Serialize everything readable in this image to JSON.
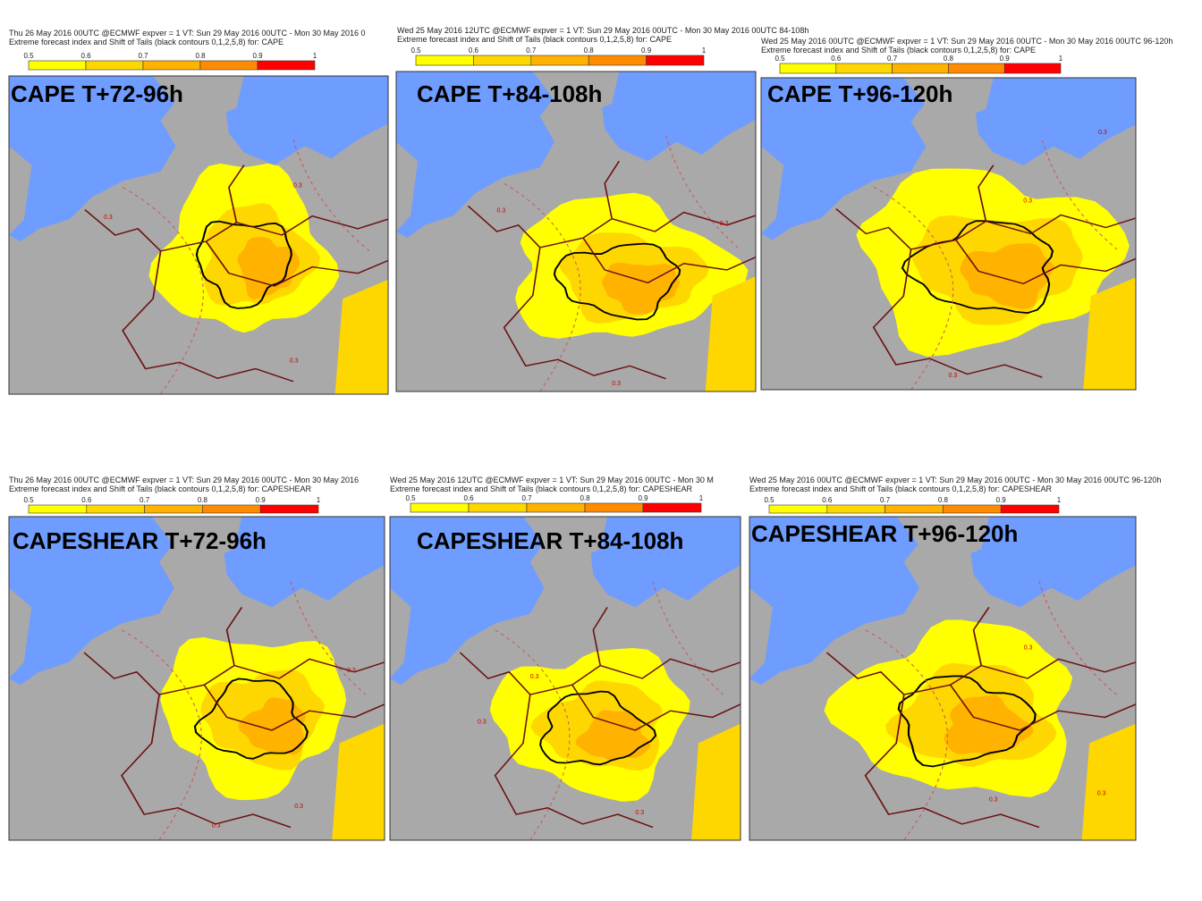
{
  "colorbar": {
    "ticks": [
      0.5,
      0.6,
      0.7,
      0.8,
      0.9,
      1
    ],
    "colors": [
      "#ffff00",
      "#ffd700",
      "#ffb300",
      "#ff8c00",
      "#ff0000"
    ]
  },
  "panels": [
    {
      "header_line1": "Thu 26 May 2016 00UTC @ECMWF expver = 1 VT: Sun 29 May 2016 00UTC - Mon 30 May 2016 0",
      "header_line2": "Extreme forecast index and Shift of Tails (black contours 0,1,2,5,8) for: CAPE",
      "title": "CAPE T+72-96h",
      "map_labels": [
        "0.3",
        "0.3",
        "0.3"
      ]
    },
    {
      "header_line1": "Wed 25 May 2016 12UTC @ECMWF expver = 1 VT: Sun 29 May 2016 00UTC - Mon 30 May 2016 00UTC  84-108h",
      "header_line2": "Extreme forecast index and Shift of Tails (black contours 0,1,2,5,8) for: CAPE",
      "title": "CAPE T+84-108h",
      "map_labels": [
        "0.3",
        "0.3",
        "0.3"
      ]
    },
    {
      "header_line1": "Wed 25 May 2016 00UTC @ECMWF expver = 1 VT: Sun 29 May 2016 00UTC - Mon 30 May 2016 00UTC  96-120h",
      "header_line2": "Extreme forecast index and Shift of Tails (black contours 0,1,2,5,8) for: CAPE",
      "title": "CAPE T+96-120h",
      "map_labels": [
        "0.3",
        "0.3",
        "0.3"
      ]
    },
    {
      "header_line1": "Thu 26 May 2016 00UTC @ECMWF expver = 1 VT: Sun 29 May 2016 00UTC - Mon 30 May 2016",
      "header_line2": "Extreme forecast index and Shift of Tails (black contours 0,1,2,5,8) for: CAPESHEAR",
      "title": "CAPESHEAR T+72-96h",
      "map_labels": [
        "0.3",
        "0.3",
        "0.3"
      ]
    },
    {
      "header_line1": "Wed 25 May 2016 12UTC @ECMWF expver = 1 VT: Sun 29 May 2016 00UTC - Mon 30 M",
      "header_line2": "Extreme forecast index and Shift of Tails (black contours 0,1,2,5,8) for: CAPESHEAR",
      "title": "CAPESHEAR T+84-108h",
      "map_labels": [
        "0.3",
        "0.3",
        "0.3"
      ]
    },
    {
      "header_line1": "Wed 25 May 2016 00UTC @ECMWF expver = 1 VT: Sun 29 May 2016 00UTC - Mon 30 May 2016 00UTC  96-120h",
      "header_line2": "Extreme forecast index and Shift of Tails (black contours 0,1,2,5,8) for: CAPESHEAR",
      "title": "CAPESHEAR T+96-120h",
      "map_labels": [
        "0.3",
        "0.3",
        "0.3"
      ]
    }
  ]
}
